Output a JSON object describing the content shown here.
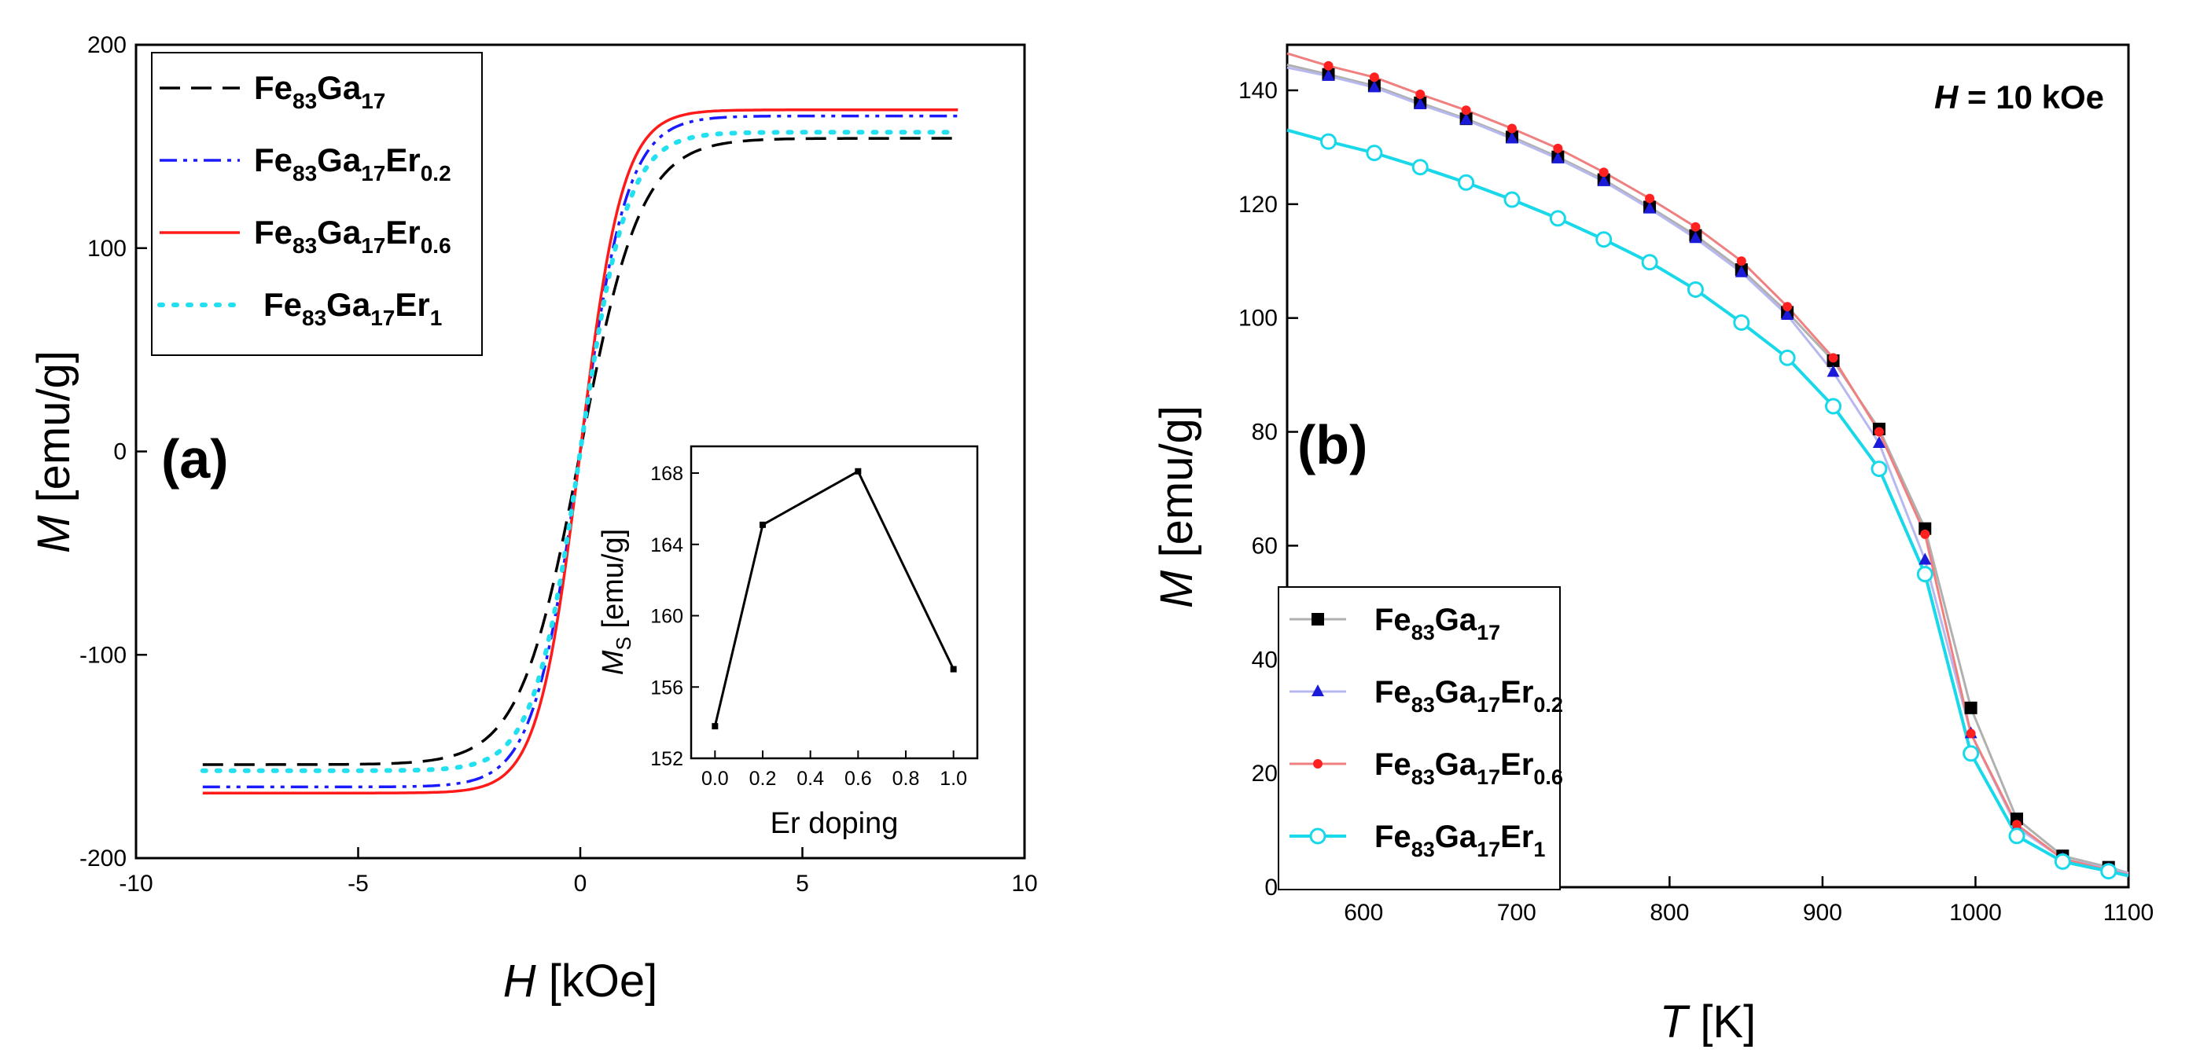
{
  "chart_data": [
    {
      "panel": "(a)",
      "type": "line",
      "xlabel_italic": "H",
      "xlabel_unit": " [kOe]",
      "ylabel_italic": "M",
      "ylabel_unit": " [emu/g]",
      "xlim": [
        -10,
        10
      ],
      "ylim": [
        -200,
        200
      ],
      "xticks": [
        -10,
        -5,
        0,
        5,
        10
      ],
      "yticks": [
        -200,
        -100,
        0,
        100,
        200
      ],
      "legend_position": "top-left",
      "series": [
        {
          "name": "Fe83Ga17",
          "base": "Fe",
          "base_sub": "83",
          "mid": "Ga",
          "mid_sub": "17",
          "end": "",
          "end_sub": "",
          "color": "#000000",
          "style": "dash",
          "Ms": 154,
          "Hk": 1.35
        },
        {
          "name": "Fe83Ga17Er0.2",
          "base": "Fe",
          "base_sub": "83",
          "mid": "Ga",
          "mid_sub": "17",
          "end": "Er",
          "end_sub": "0.2",
          "color": "#1a1aff",
          "style": "dashdot",
          "Ms": 165,
          "Hk": 1.05
        },
        {
          "name": "Fe83Ga17Er0.6",
          "base": "Fe",
          "base_sub": "83",
          "mid": "Ga",
          "mid_sub": "17",
          "end": "Er",
          "end_sub": "0.6",
          "color": "#ff1a1a",
          "style": "solid",
          "Ms": 168,
          "Hk": 0.95
        },
        {
          "name": "Fe83Ga17Er1",
          "base": "Fe",
          "base_sub": "83",
          "mid": "Ga",
          "mid_sub": "17",
          "end": "Er",
          "end_sub": "1",
          "color": "#22e0f0",
          "style": "dot",
          "Ms": 157,
          "Hk": 1.05
        }
      ],
      "x_range": [
        -8.5,
        8.5
      ],
      "inset": {
        "type": "line",
        "xlabel": "Er doping",
        "ylabel_italic": "M",
        "ylabel_sub": "S",
        "ylabel_unit": " [emu/g]",
        "xlim": [
          -0.1,
          1.1
        ],
        "ylim": [
          152,
          169.5
        ],
        "xticks": [
          "0.0",
          "0.2",
          "0.4",
          "0.6",
          "0.8",
          "1.0"
        ],
        "yticks": [
          152,
          156,
          160,
          164,
          168
        ],
        "x": [
          0.0,
          0.2,
          0.6,
          1.0
        ],
        "y": [
          153.8,
          165.1,
          168.1,
          157.0
        ]
      }
    },
    {
      "panel": "(b)",
      "type": "line",
      "xlabel_italic": "T",
      "xlabel_unit": " [K]",
      "ylabel_italic": "M",
      "ylabel_unit": " [emu/g]",
      "annotation_italic": "H",
      "annotation_text": " = 10 kOe",
      "xlim": [
        550,
        1100
      ],
      "ylim": [
        0,
        148
      ],
      "xticks": [
        600,
        700,
        800,
        900,
        1000,
        1100
      ],
      "yticks": [
        0,
        20,
        40,
        60,
        80,
        100,
        120,
        140
      ],
      "legend_position": "bottom-left",
      "x": [
        547,
        577,
        607,
        637,
        667,
        697,
        727,
        757,
        787,
        817,
        847,
        877,
        907,
        937,
        967,
        997,
        1027,
        1057,
        1087,
        1100
      ],
      "series": [
        {
          "name": "Fe83Ga17",
          "base": "Fe",
          "base_sub": "83",
          "mid": "Ga",
          "mid_sub": "17",
          "end": "",
          "end_sub": "",
          "color": "#000000",
          "line_color": "#b0b0b0",
          "marker": "square",
          "y": [
            144.5,
            142.8,
            140.8,
            137.8,
            135.0,
            131.8,
            128.3,
            124.3,
            119.5,
            114.5,
            108.5,
            101.0,
            92.5,
            80.5,
            63.0,
            31.5,
            12.0,
            5.5,
            3.5,
            2.5
          ]
        },
        {
          "name": "Fe83Ga17Er0.2",
          "base": "Fe",
          "base_sub": "83",
          "mid": "Ga",
          "mid_sub": "17",
          "end": "Er",
          "end_sub": "0.2",
          "color": "#1a1ad8",
          "line_color": "#b8b8f0",
          "marker": "triangle",
          "y": [
            144.0,
            142.5,
            140.5,
            137.5,
            134.8,
            131.5,
            128.0,
            124.0,
            119.2,
            114.0,
            108.0,
            100.5,
            90.5,
            78.0,
            57.5,
            27.0,
            10.5,
            5.0,
            3.2,
            2.4
          ]
        },
        {
          "name": "Fe83Ga17Er0.6",
          "base": "Fe",
          "base_sub": "83",
          "mid": "Ga",
          "mid_sub": "17",
          "end": "Er",
          "end_sub": "0.6",
          "color": "#ff2020",
          "line_color": "#f08080",
          "marker": "circle",
          "y": [
            146.5,
            144.3,
            142.3,
            139.3,
            136.5,
            133.3,
            129.8,
            125.6,
            121.0,
            116.0,
            110.0,
            102.0,
            93.0,
            80.0,
            62.0,
            27.0,
            11.0,
            5.0,
            3.0,
            2.2
          ]
        },
        {
          "name": "Fe83Ga17Er1",
          "base": "Fe",
          "base_sub": "83",
          "mid": "Ga",
          "mid_sub": "17",
          "end": "Er",
          "end_sub": "1",
          "color": "#19d8ea",
          "line_color": "#19d8ea",
          "marker": "open-circle",
          "y": [
            133.0,
            131.0,
            129.0,
            126.5,
            123.8,
            120.8,
            117.5,
            113.8,
            109.8,
            105.0,
            99.2,
            93.0,
            84.5,
            73.5,
            55.0,
            23.5,
            9.0,
            4.5,
            2.8,
            2.0
          ]
        }
      ]
    }
  ]
}
